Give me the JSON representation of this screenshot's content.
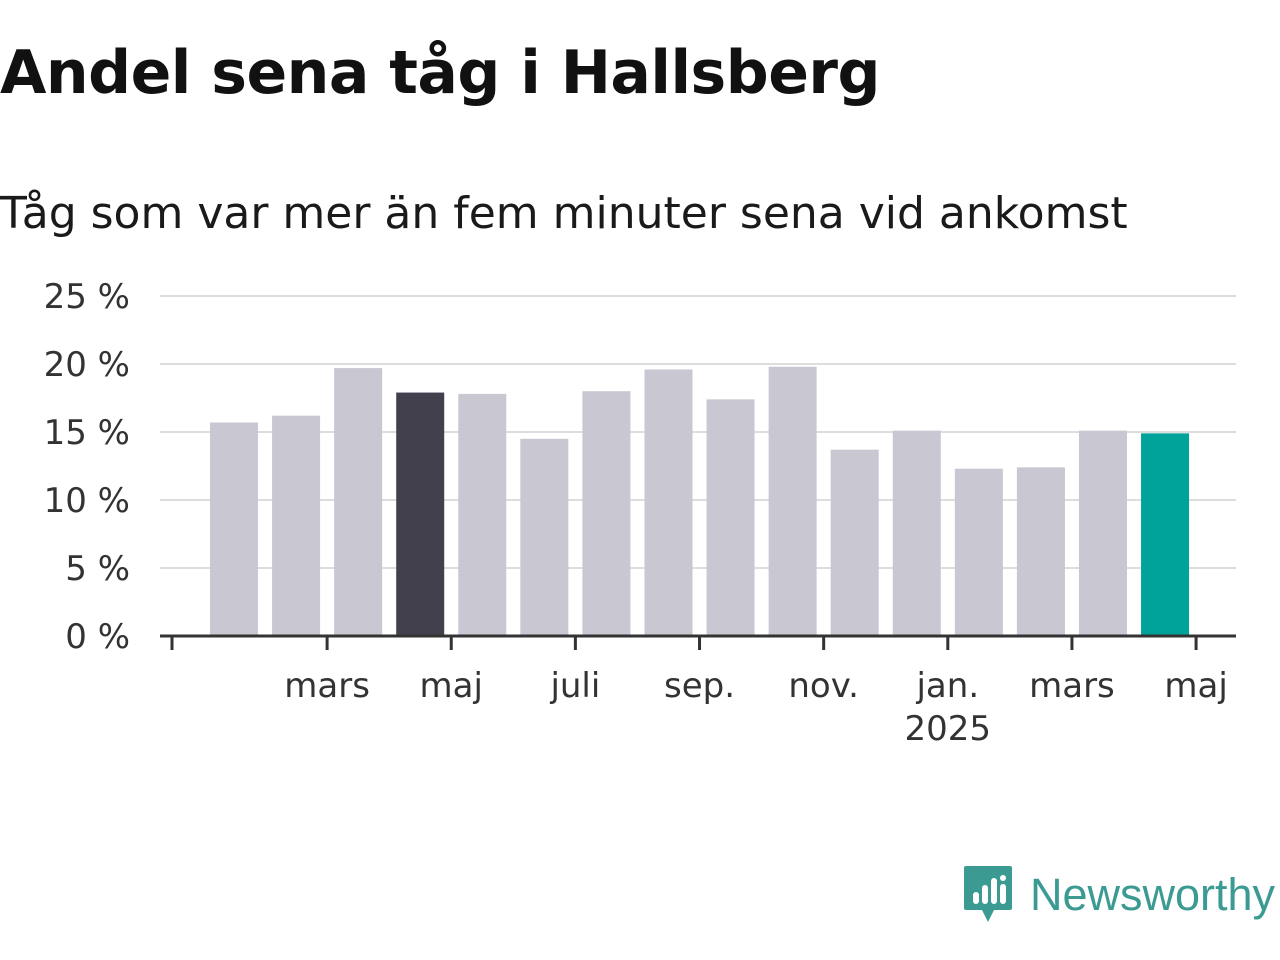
{
  "header": {
    "title": "Andel sena tåg i Hallsberg",
    "subtitle": "Tåg som var mer än fem minuter sena vid ankomst"
  },
  "chart_data": {
    "type": "bar",
    "title": "Andel sena tåg i Hallsberg",
    "subtitle": "Tåg som var mer än fem minuter sena vid ankomst",
    "xlabel": "",
    "ylabel": "",
    "x_tick_labels": [
      {
        "month_index": 2,
        "label": "mars"
      },
      {
        "month_index": 4,
        "label": "maj"
      },
      {
        "month_index": 6,
        "label": "juli"
      },
      {
        "month_index": 8,
        "label": "sep."
      },
      {
        "month_index": 10,
        "label": "nov."
      },
      {
        "month_index": 12,
        "label": "jan.",
        "sublabel": "2025"
      },
      {
        "month_index": 14,
        "label": "mars"
      },
      {
        "month_index": 16,
        "label": "maj"
      }
    ],
    "values": [
      15.7,
      16.2,
      19.7,
      17.9,
      17.8,
      14.5,
      18.0,
      19.6,
      17.4,
      19.8,
      13.7,
      15.1,
      12.3,
      12.4,
      15.1,
      14.9
    ],
    "value_unit": "%",
    "yticks": [
      "0 %",
      "5 %",
      "10 %",
      "15 %",
      "20 %",
      "25 %"
    ],
    "ylim": [
      0,
      25
    ],
    "grid": true,
    "legend": "none",
    "colors": {
      "default": "#c8c7d2",
      "highlight_dark": "#42404c",
      "highlight_latest": "#00a399",
      "grid": "#dddddd",
      "axis": "#333333"
    },
    "highlighted": {
      "3": "highlight_dark",
      "15": "highlight_latest"
    }
  },
  "logo": {
    "name": "Newsworthy",
    "icon": "bar-chart-speech-bubble-icon",
    "color": "#3b9b93"
  }
}
